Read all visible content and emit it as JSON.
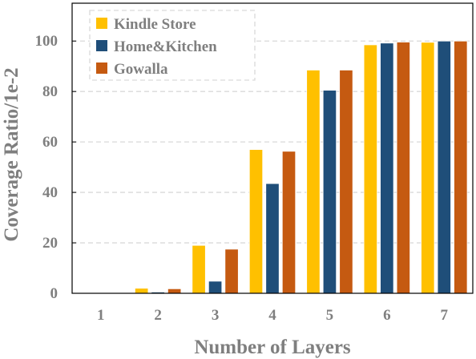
{
  "chart_data": {
    "type": "bar",
    "xlabel": "Number of Layers",
    "ylabel": "Coverage Ratio/1e-2",
    "categories": [
      "1",
      "2",
      "3",
      "4",
      "5",
      "6",
      "7"
    ],
    "ylim": [
      0,
      115
    ],
    "yticks": [
      0,
      20,
      40,
      60,
      80,
      100
    ],
    "grid": true,
    "legend_position": "top-left",
    "series": [
      {
        "name": "Kindle Store",
        "color": "#ffc000",
        "values": [
          0,
          2,
          19,
          57,
          88.5,
          98.5,
          99.5
        ]
      },
      {
        "name": "Home&Kitchen",
        "color": "#1f4e79",
        "values": [
          0,
          0.5,
          4.8,
          43.5,
          80.5,
          99.2,
          100
        ]
      },
      {
        "name": "Gowalla",
        "color": "#c55a11",
        "values": [
          0,
          1.8,
          17.5,
          56.3,
          88.5,
          99.6,
          100
        ]
      }
    ]
  }
}
